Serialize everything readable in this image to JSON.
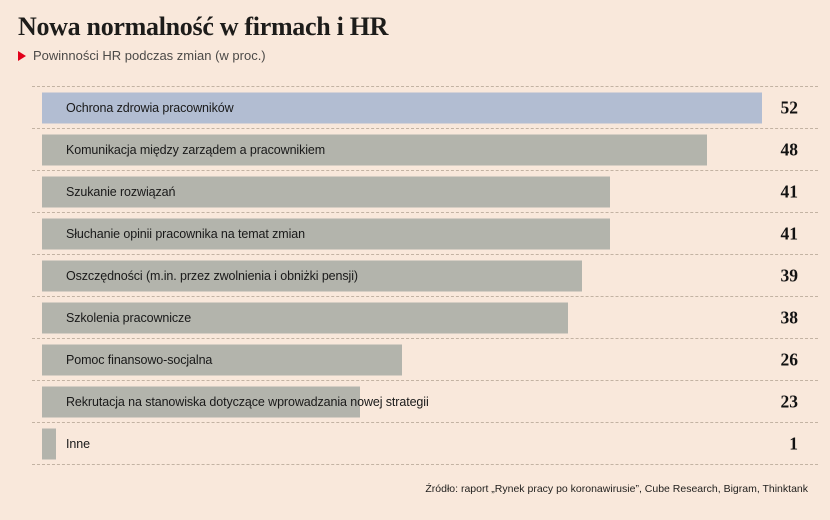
{
  "header": {
    "title": "Nowa normalność w firmach i HR",
    "subtitle": "Powinności HR podczas zmian (w proc.)"
  },
  "colors": {
    "background": "#f9e8db",
    "accent_red": "#e2001a",
    "highlight_bar": "#b2bdd2",
    "default_bar": "#b3b4ac",
    "separator": "#c3b3a3"
  },
  "chart_data": {
    "type": "bar",
    "orientation": "horizontal",
    "title": "Nowa normalność w firmach i HR",
    "subtitle": "Powinności HR podczas zmian (w proc.)",
    "unit": "proc.",
    "categories": [
      "Ochrona zdrowia pracowników",
      "Komunikacja między zarządem a pracownikiem",
      "Szukanie rozwiązań",
      "Słuchanie opinii pracownika na temat zmian",
      "Oszczędności (m.in. przez zwolnienia i obniżki pensji)",
      "Szkolenia pracownicze",
      "Pomoc finansowo-socjalna",
      "Rekrutacja na stanowiska dotyczące wprowadzania nowej strategii",
      "Inne"
    ],
    "values": [
      52,
      48,
      41,
      41,
      39,
      38,
      26,
      23,
      1
    ],
    "xlim": [
      0,
      52
    ],
    "highlight_index": 0,
    "grid": "dashed-row-separators",
    "legend": "none"
  },
  "footer": {
    "source": "Źródło: raport „Rynek pracy po koronawirusie”, Cube Research, Bigram, Thinktank"
  }
}
